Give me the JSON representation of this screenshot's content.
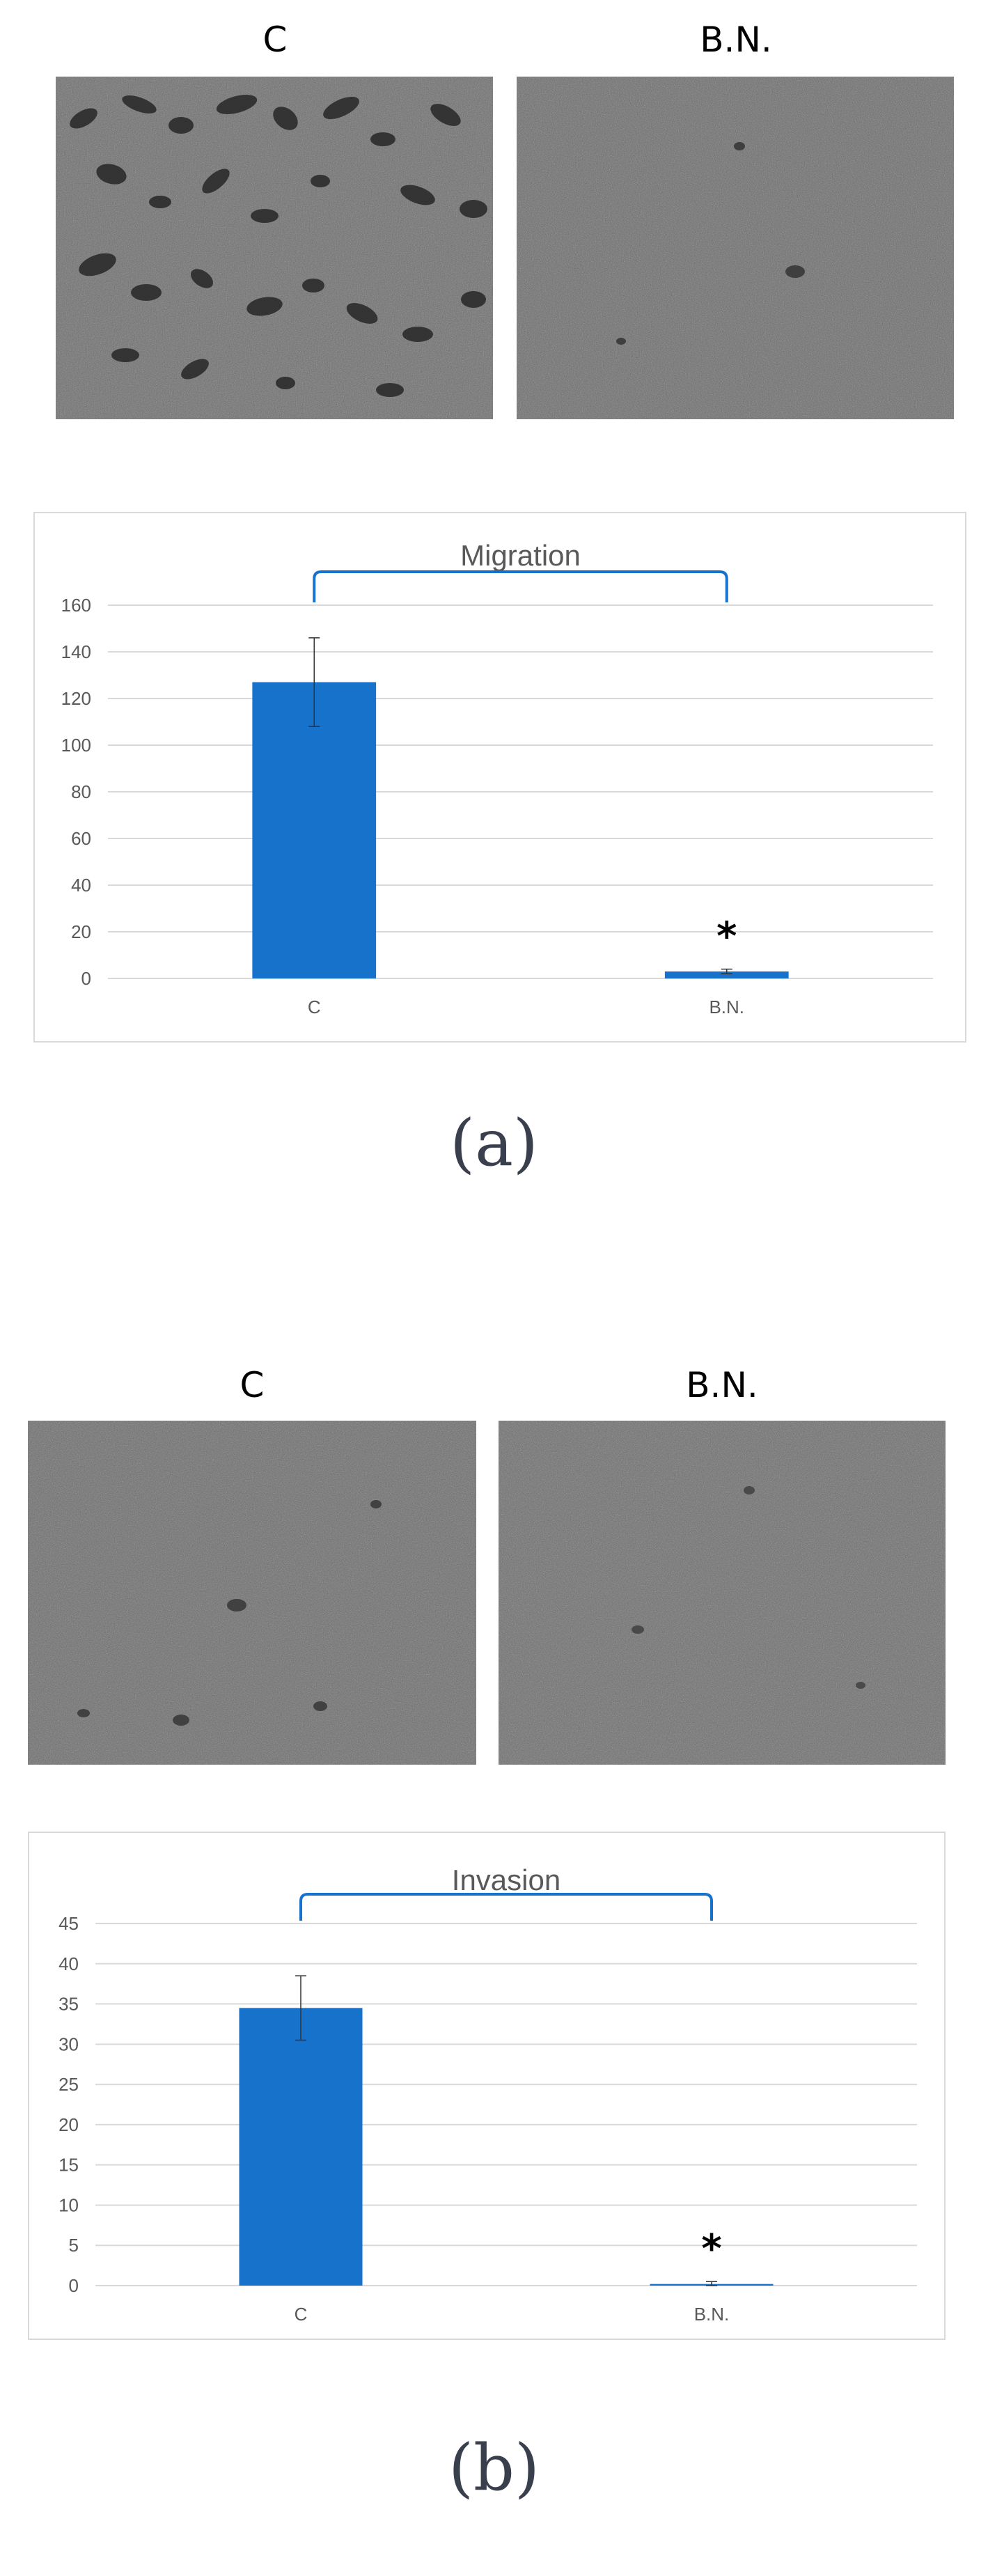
{
  "panel_a": {
    "label": "(a)",
    "image_labels": [
      "C",
      "B.N."
    ],
    "images": [
      "micrograph-control-migration",
      "micrograph-bn-migration"
    ]
  },
  "panel_b": {
    "label": "(b)",
    "image_labels": [
      "C",
      "B.N."
    ],
    "images": [
      "micrograph-control-invasion",
      "micrograph-bn-invasion"
    ]
  },
  "colors": {
    "bar": "#1772cc",
    "bracket": "#1772cc",
    "grid": "#d9d9d9",
    "text": "#595959"
  },
  "chart_data": [
    {
      "type": "bar",
      "title": "Migration",
      "categories": [
        "C",
        "B.N."
      ],
      "values": [
        127,
        3
      ],
      "errors": [
        19,
        1
      ],
      "ylim": [
        0,
        160
      ],
      "yticks": [
        0,
        20,
        40,
        60,
        80,
        100,
        120,
        140,
        160
      ],
      "annotations": [
        {
          "category": "B.N.",
          "text": "*"
        }
      ],
      "bracket": [
        "C",
        "B.N."
      ],
      "grid": true,
      "legend": "none"
    },
    {
      "type": "bar",
      "title": "Invasion",
      "categories": [
        "C",
        "B.N."
      ],
      "values": [
        34.5,
        0.2
      ],
      "errors": [
        4,
        0.3
      ],
      "ylim": [
        0,
        45
      ],
      "yticks": [
        0,
        5,
        10,
        15,
        20,
        25,
        30,
        35,
        40,
        45
      ],
      "annotations": [
        {
          "category": "B.N.",
          "text": "*"
        }
      ],
      "bracket": [
        "C",
        "B.N."
      ],
      "grid": true,
      "legend": "none"
    }
  ]
}
